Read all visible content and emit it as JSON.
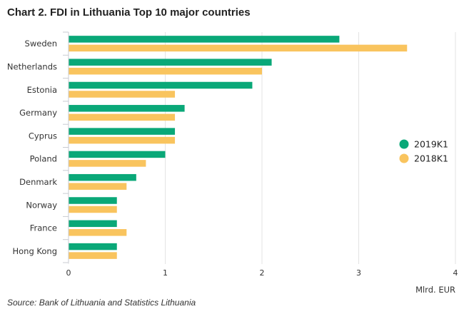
{
  "chart_data": {
    "type": "bar",
    "orientation": "horizontal",
    "title": "Chart 2. FDI in Lithuania Top 10 major countries",
    "categories": [
      "Sweden",
      "Netherlands",
      "Estonia",
      "Germany",
      "Cyprus",
      "Poland",
      "Denmark",
      "Norway",
      "France",
      "Hong Kong"
    ],
    "series": [
      {
        "name": "2019K1",
        "color": "#0aa878",
        "values": [
          2.8,
          2.1,
          1.9,
          1.2,
          1.1,
          1.0,
          0.7,
          0.5,
          0.5,
          0.5
        ]
      },
      {
        "name": "2018K1",
        "color": "#f9c45e",
        "values": [
          3.5,
          2.0,
          1.1,
          1.1,
          1.1,
          0.8,
          0.6,
          0.5,
          0.6,
          0.5
        ]
      }
    ],
    "xlabel": "Mlrd. EUR",
    "xlim": [
      0,
      4
    ],
    "xticks": [
      0,
      1,
      2,
      3,
      4
    ],
    "grid": true,
    "legend_position": "right"
  },
  "source": "Source: Bank of Lithuania and Statistics Lithuania"
}
